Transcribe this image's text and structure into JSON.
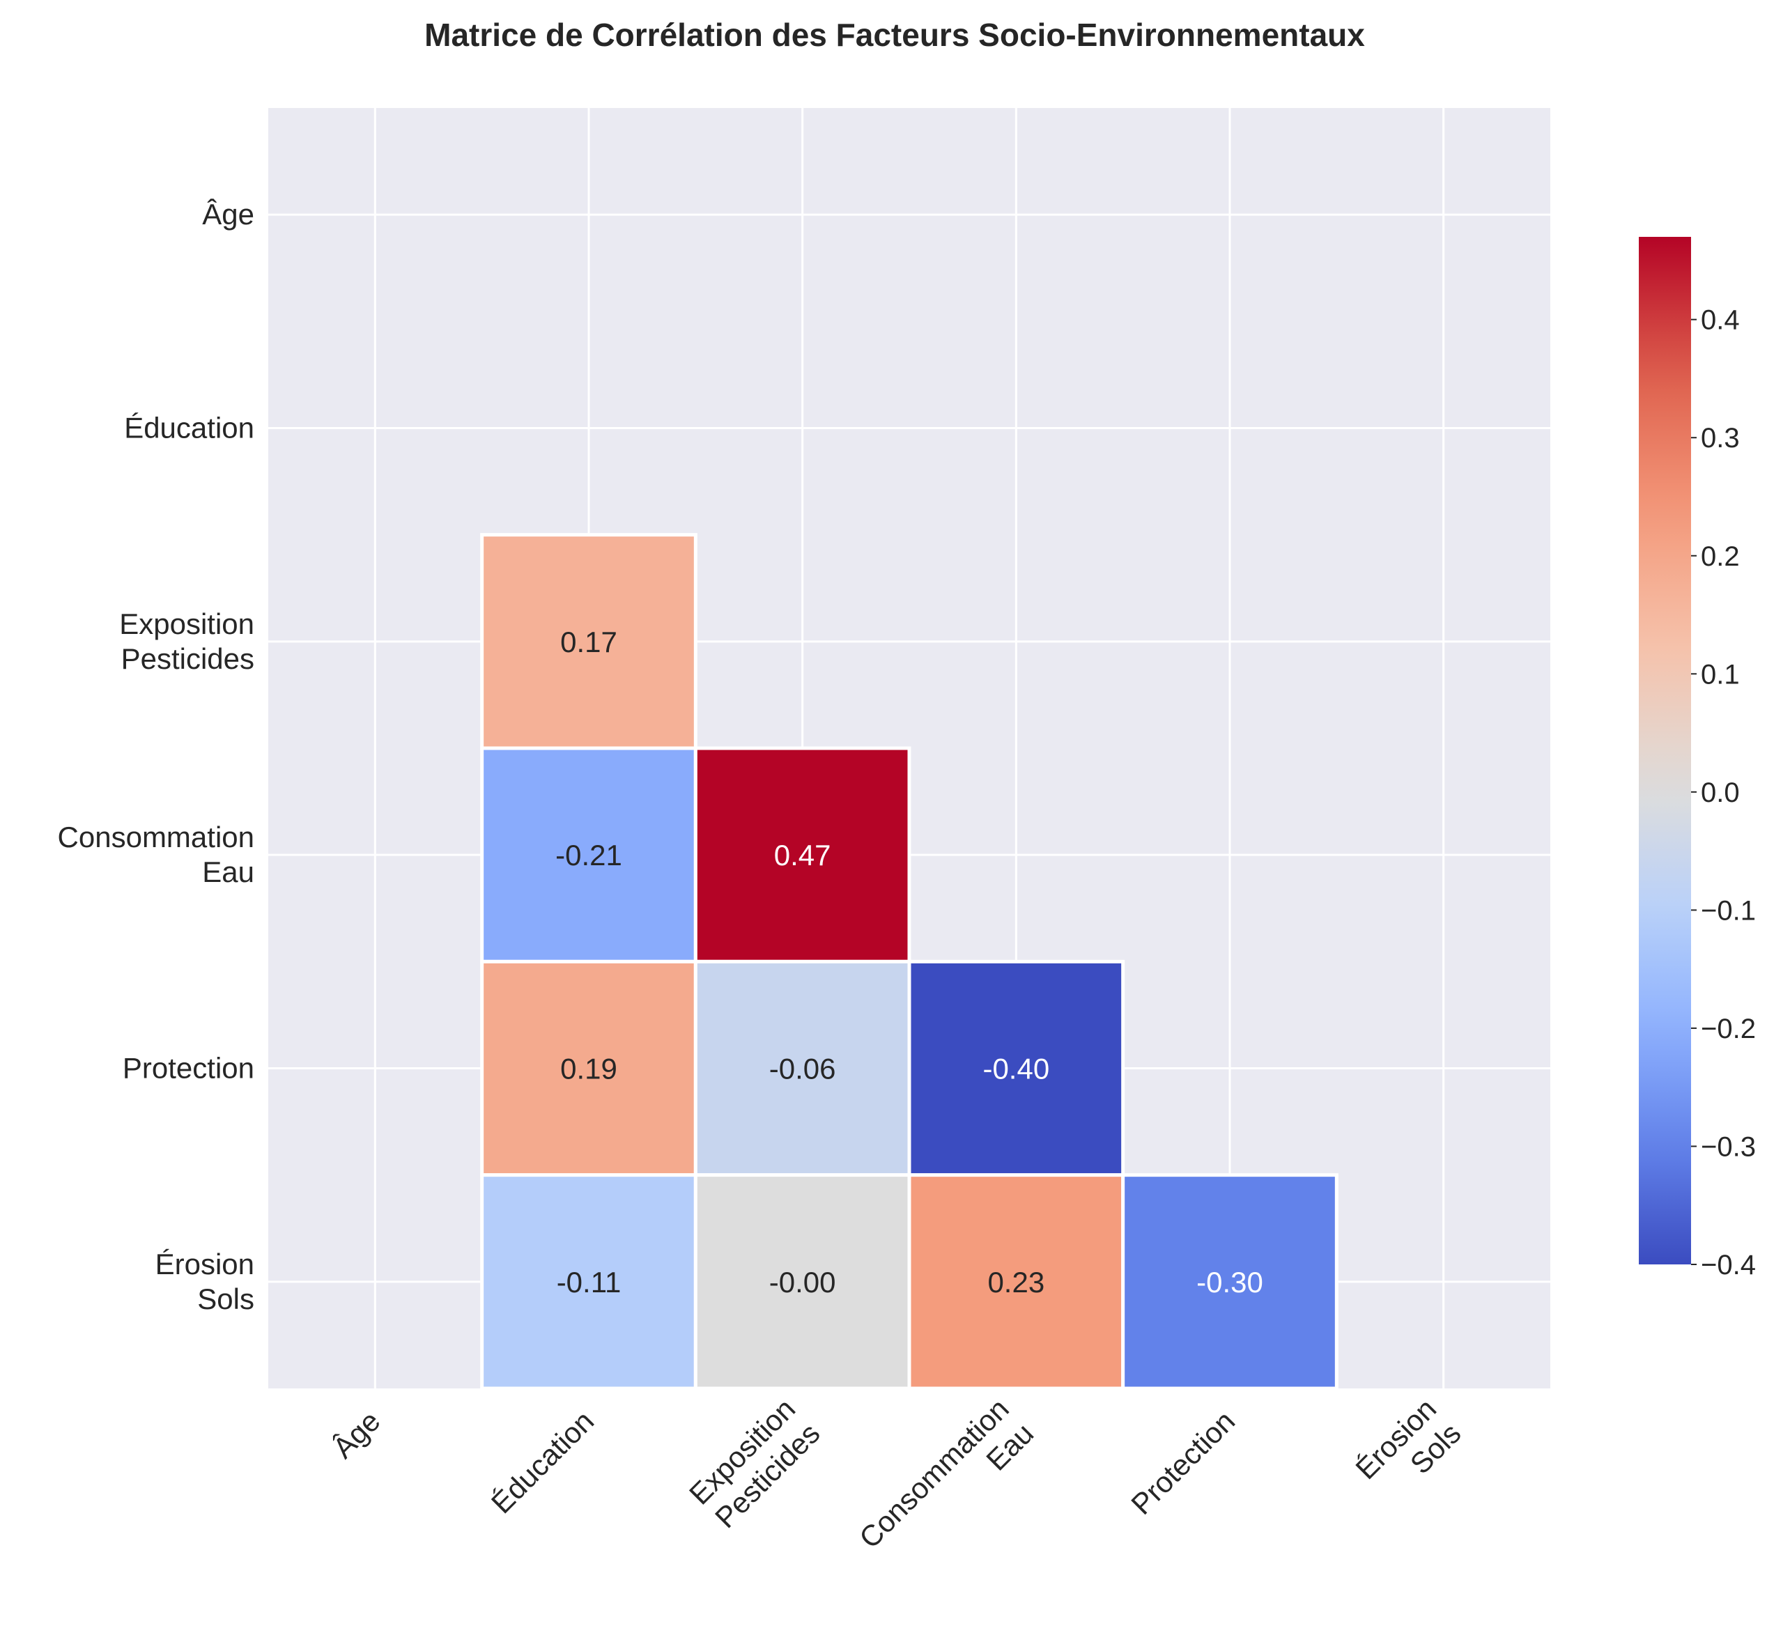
{
  "chart_data": {
    "type": "heatmap",
    "title": "Matrice de Corrélation des Facteurs Socio-Environnementaux",
    "row_labels": [
      [
        "Âge"
      ],
      [
        "Éducation"
      ],
      [
        "Exposition",
        "Pesticides"
      ],
      [
        "Consommation",
        "Eau"
      ],
      [
        "Protection"
      ],
      [
        "Érosion",
        "Sols"
      ]
    ],
    "col_labels": [
      [
        "Âge"
      ],
      [
        "Éducation"
      ],
      [
        "Exposition",
        "Pesticides"
      ],
      [
        "Consommation",
        "Eau"
      ],
      [
        "Protection"
      ],
      [
        "Érosion",
        "Sols"
      ]
    ],
    "mask": "upper-triangle-and-diagonal",
    "values": [
      [
        null,
        null,
        null,
        null,
        null,
        null
      ],
      [
        null,
        null,
        null,
        null,
        null,
        null
      ],
      [
        null,
        0.17,
        null,
        null,
        null,
        null
      ],
      [
        null,
        -0.21,
        0.47,
        null,
        null,
        null
      ],
      [
        null,
        0.19,
        -0.06,
        -0.4,
        null,
        null
      ],
      [
        null,
        -0.11,
        -0.0,
        0.23,
        -0.3,
        null
      ]
    ],
    "value_labels": [
      [
        null,
        null,
        null,
        null,
        null,
        null
      ],
      [
        null,
        null,
        null,
        null,
        null,
        null
      ],
      [
        null,
        "0.17",
        null,
        null,
        null,
        null
      ],
      [
        null,
        "-0.21",
        "0.47",
        null,
        null,
        null
      ],
      [
        null,
        "0.19",
        "-0.06",
        "-0.40",
        null,
        null
      ],
      [
        null,
        "-0.11",
        "-0.00",
        "0.23",
        "-0.30",
        null
      ]
    ],
    "colormap": "coolwarm",
    "vmin": -0.4,
    "vmax": 0.47,
    "colorbar_ticks": [
      0.4,
      0.3,
      0.2,
      0.1,
      0.0,
      -0.1,
      -0.2,
      -0.3,
      -0.4
    ],
    "colorbar_tick_labels": [
      "0.4",
      "0.3",
      "0.2",
      "0.1",
      "0.0",
      "−0.1",
      "−0.2",
      "−0.3",
      "−0.4"
    ],
    "background_color": "#eaeaf2",
    "grid": true,
    "gridline_color": "#ffffff"
  }
}
